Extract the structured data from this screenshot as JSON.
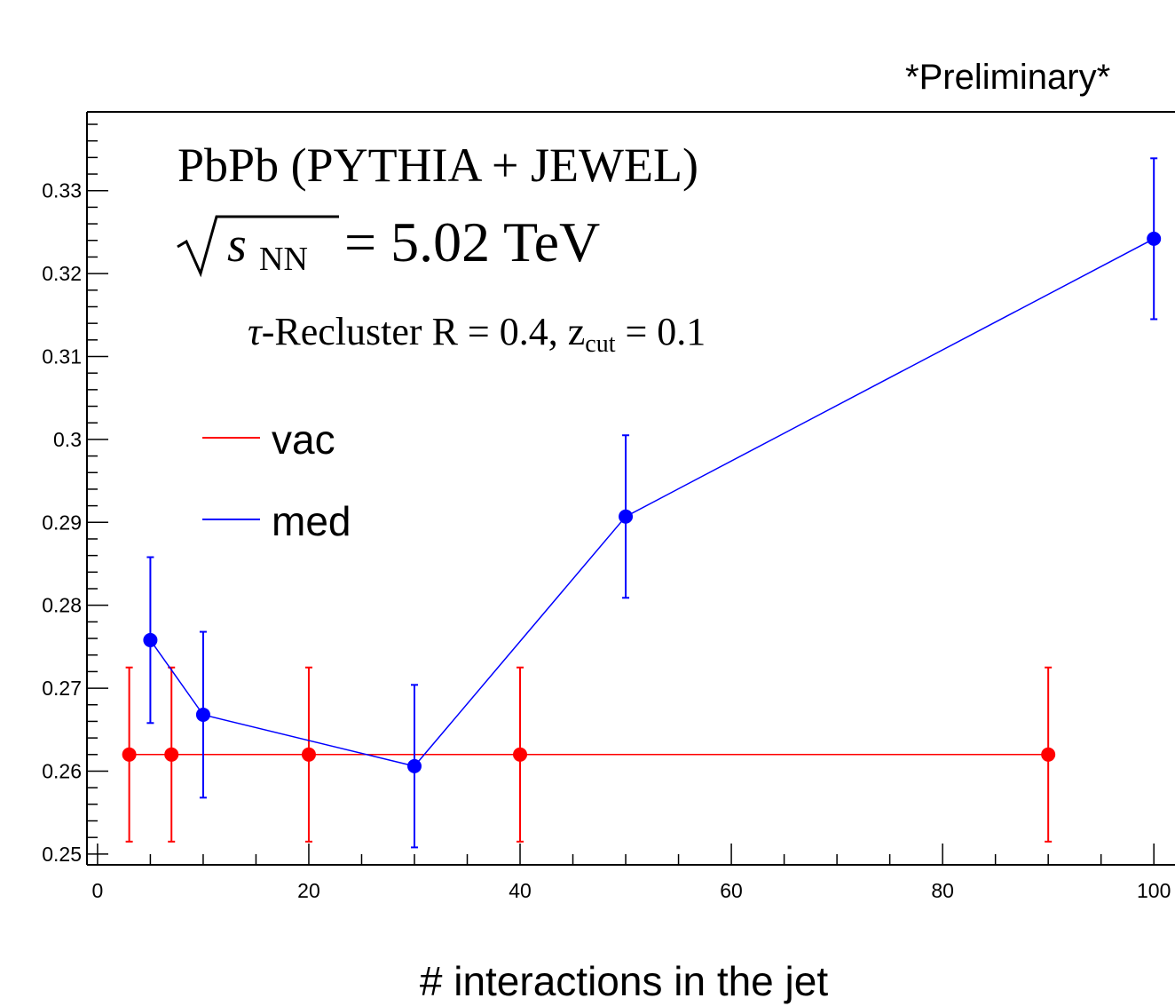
{
  "header": {
    "preliminary": "*Preliminary*"
  },
  "annotations": {
    "system": "PbPb (PYTHIA + JEWEL)",
    "energy_var": "s",
    "energy_sub": "NN",
    "energy_value": " = 5.02 TeV",
    "recluster_tau": "τ",
    "recluster_text": "-Recluster R = 0.4, z",
    "recluster_sub": "cut",
    "recluster_value": " = 0.1"
  },
  "colors": {
    "vac": "#ff0000",
    "med": "#0000ff",
    "axis": "#000000"
  },
  "chart_data": {
    "type": "scatter",
    "xlabel": "# interactions in the jet",
    "ylabel": "",
    "xlim": [
      -1,
      102
    ],
    "ylim": [
      0.2487,
      0.3395
    ],
    "x_ticks": [
      0,
      20,
      40,
      60,
      80,
      100
    ],
    "y_ticks": [
      0.25,
      0.26,
      0.27,
      0.28,
      0.29,
      0.3,
      0.31,
      0.32,
      0.33
    ],
    "y_tick_labels": [
      "0.25",
      "0.26",
      "0.27",
      "0.28",
      "0.29",
      "0.3",
      "0.31",
      "0.32",
      "0.33"
    ],
    "legend_position": "left",
    "series": [
      {
        "name": "vac",
        "color": "#ff0000",
        "x": [
          3,
          7,
          20,
          40,
          90
        ],
        "y": [
          0.262,
          0.262,
          0.262,
          0.262,
          0.262
        ],
        "yerr": [
          0.0105,
          0.0105,
          0.0105,
          0.0105,
          0.0105
        ]
      },
      {
        "name": "med",
        "color": "#0000ff",
        "x": [
          5,
          10,
          30,
          50,
          100
        ],
        "y": [
          0.2758,
          0.2668,
          0.2606,
          0.2907,
          0.3242
        ],
        "yerr": [
          0.01,
          0.01,
          0.0098,
          0.0098,
          0.0097
        ]
      }
    ]
  }
}
